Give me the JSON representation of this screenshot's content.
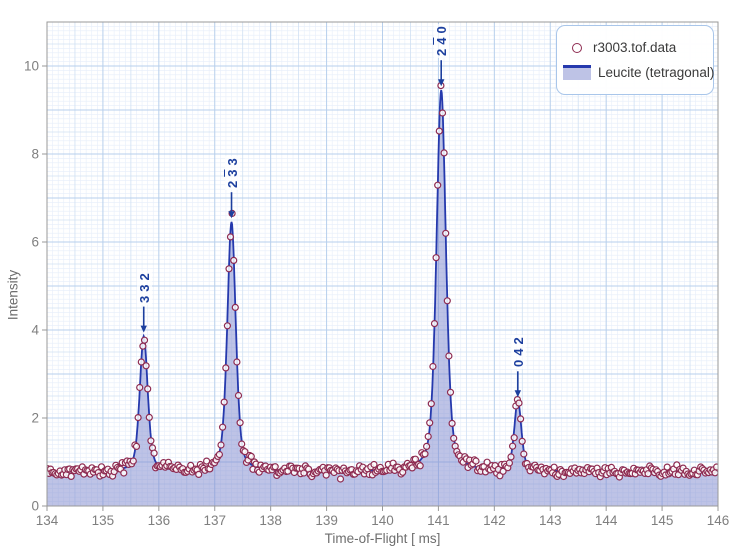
{
  "figure": {
    "x_axis": {
      "title": "Time-of-Flight [ ms]",
      "min": 134,
      "max": 146,
      "tick_step": 1,
      "tick_labels": [
        "134",
        "135",
        "136",
        "137",
        "138",
        "139",
        "140",
        "141",
        "142",
        "143",
        "144",
        "145",
        "146"
      ]
    },
    "y_axis": {
      "title": "Intensity",
      "min": 0,
      "max": 11,
      "tick_values": [
        0,
        2,
        4,
        6,
        8,
        10
      ],
      "tick_labels": [
        "0",
        "2",
        "4",
        "6",
        "8",
        "10"
      ]
    },
    "legend": {
      "items": [
        {
          "label": "r3003.tof.data",
          "marker": "open-circle"
        },
        {
          "label": "Leucite (tetragonal)",
          "marker": "line-area"
        }
      ]
    },
    "colors": {
      "marker_stroke": "#8e2b51",
      "curve": "#2539ad",
      "area_fill": "rgba(125,135,205,0.5)",
      "annotation": "#1c3f9e",
      "grid_minor": "#e6eefa",
      "grid_medium": "#d0e0f3",
      "grid_major": "#b7cfec",
      "axis_line": "#999999",
      "tick_text": "#7f7f7f",
      "legend_border": "#a9c6ea"
    }
  },
  "chart_data": {
    "type": "scatter",
    "title": "",
    "xlabel": "Time-of-Flight [ ms]",
    "ylabel": "Intensity",
    "xlim": [
      134,
      146
    ],
    "ylim": [
      0,
      11
    ],
    "grid": "fine graph-paper style, minor 0.1 / medium 0.5 / major 1.0",
    "legend_position": "top-right inside plot",
    "series": [
      {
        "name": "r3003.tof.data",
        "type": "scatter",
        "marker": "open-circle",
        "point_spacing_ms": 0.0285
      },
      {
        "name": "Leucite (tetragonal)",
        "type": "area-line",
        "profile": "pseudo-voigt",
        "lorentz_fraction": 0.45
      }
    ],
    "baseline_intensity": 0.78,
    "peaks": [
      {
        "label": "3 3 2",
        "hkl": [
          [
            "3",
            false
          ],
          [
            "3",
            false
          ],
          [
            "2",
            false
          ]
        ],
        "center_ms": 135.73,
        "peak_intensity": 3.85,
        "fwhm_ms": 0.17
      },
      {
        "label": "2 3̅ 3",
        "hkl": [
          [
            "2",
            false
          ],
          [
            "3",
            true
          ],
          [
            "3",
            false
          ]
        ],
        "center_ms": 137.3,
        "peak_intensity": 6.45,
        "fwhm_ms": 0.18
      },
      {
        "label": "2 4̅ 0",
        "hkl": [
          [
            "2",
            false
          ],
          [
            "4",
            true
          ],
          [
            "0",
            false
          ]
        ],
        "center_ms": 141.05,
        "peak_intensity": 9.45,
        "fwhm_ms": 0.2
      },
      {
        "label": "0 4 2",
        "hkl": [
          [
            "0",
            false
          ],
          [
            "4",
            false
          ],
          [
            "2",
            false
          ]
        ],
        "center_ms": 142.42,
        "peak_intensity": 2.38,
        "fwhm_ms": 0.15
      }
    ]
  }
}
